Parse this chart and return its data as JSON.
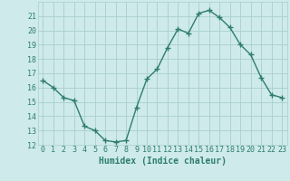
{
  "x": [
    0,
    1,
    2,
    3,
    4,
    5,
    6,
    7,
    8,
    9,
    10,
    11,
    12,
    13,
    14,
    15,
    16,
    17,
    18,
    19,
    20,
    21,
    22,
    23
  ],
  "y": [
    16.5,
    16.0,
    15.3,
    15.1,
    13.3,
    13.0,
    12.3,
    12.2,
    12.3,
    14.6,
    16.6,
    17.3,
    18.8,
    20.1,
    19.8,
    21.2,
    21.4,
    20.9,
    20.2,
    19.0,
    18.3,
    16.7,
    15.5,
    15.3
  ],
  "line_color": "#2e7d6e",
  "marker": "+",
  "marker_size": 4,
  "bg_color": "#ceeaea",
  "grid_color": "#aacece",
  "xlabel": "Humidex (Indice chaleur)",
  "ylim": [
    12,
    22
  ],
  "xlim": [
    -0.5,
    23.5
  ],
  "yticks": [
    12,
    13,
    14,
    15,
    16,
    17,
    18,
    19,
    20,
    21
  ],
  "xticks": [
    0,
    1,
    2,
    3,
    4,
    5,
    6,
    7,
    8,
    9,
    10,
    11,
    12,
    13,
    14,
    15,
    16,
    17,
    18,
    19,
    20,
    21,
    22,
    23
  ],
  "xtick_labels": [
    "0",
    "1",
    "2",
    "3",
    "4",
    "5",
    "6",
    "7",
    "8",
    "9",
    "10",
    "11",
    "12",
    "13",
    "14",
    "15",
    "16",
    "17",
    "18",
    "19",
    "20",
    "21",
    "22",
    "23"
  ],
  "line_width": 1.0,
  "tick_fontsize": 6.0,
  "xlabel_fontsize": 7.0
}
